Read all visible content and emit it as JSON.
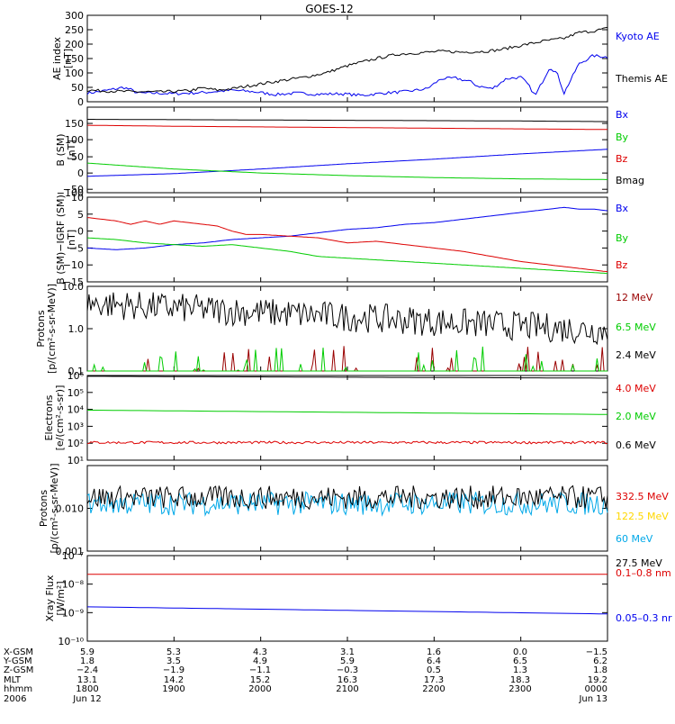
{
  "title": "GOES-12",
  "colors": {
    "black": "#000000",
    "blue": "#0000ee",
    "red": "#dd0000",
    "green": "#00cc00",
    "darkred": "#990000",
    "yellow": "#ffd700",
    "cyan": "#00a8e8"
  },
  "chart_data": [
    {
      "type": "line",
      "ylabel_lines": [
        "AE index",
        "[nT]"
      ],
      "ylim": [
        0,
        300
      ],
      "y_ticks": [
        "0",
        "50",
        "100",
        "150",
        "200",
        "250",
        "300"
      ],
      "x_range": [
        0,
        360
      ],
      "series": [
        {
          "name": "Kyoto AE",
          "color": "blue",
          "x": [
            0,
            8,
            20,
            25,
            30,
            35,
            45,
            60,
            80,
            100,
            115,
            130,
            145,
            160,
            175,
            190,
            205,
            220,
            235,
            245,
            255,
            265,
            270,
            280,
            290,
            300,
            305,
            310,
            315,
            320,
            325,
            330,
            340,
            350,
            360
          ],
          "y": [
            30,
            35,
            45,
            50,
            42,
            30,
            30,
            28,
            32,
            40,
            35,
            25,
            30,
            26,
            28,
            22,
            30,
            35,
            45,
            80,
            82,
            70,
            55,
            45,
            80,
            85,
            60,
            20,
            70,
            120,
            100,
            30,
            130,
            160,
            155
          ]
        },
        {
          "name": "Themis AE",
          "color": "black",
          "x": [
            0,
            10,
            30,
            50,
            70,
            80,
            90,
            100,
            115,
            130,
            150,
            165,
            180,
            200,
            215,
            230,
            245,
            260,
            275,
            285,
            300,
            315,
            330,
            340,
            350,
            360
          ],
          "y": [
            40,
            38,
            35,
            34,
            38,
            48,
            40,
            45,
            58,
            70,
            85,
            100,
            125,
            150,
            165,
            170,
            175,
            172,
            175,
            180,
            195,
            210,
            220,
            240,
            245,
            255
          ]
        }
      ]
    },
    {
      "type": "line",
      "ylabel_lines": [
        "B (SM)",
        "[nT]"
      ],
      "ylim": [
        -110,
        150
      ],
      "y_ticks": [
        "−100",
        "−50",
        "0",
        "50",
        "100",
        "150"
      ],
      "x_range": [
        0,
        360
      ],
      "series": [
        {
          "name": "Bx",
          "color": "blue",
          "x": [
            0,
            60,
            120,
            180,
            240,
            300,
            360
          ],
          "y": [
            -60,
            -52,
            -38,
            -22,
            -8,
            8,
            22
          ]
        },
        {
          "name": "By",
          "color": "green",
          "x": [
            0,
            60,
            120,
            180,
            240,
            300,
            360
          ],
          "y": [
            -20,
            -38,
            -50,
            -58,
            -64,
            -68,
            -70
          ]
        },
        {
          "name": "Bz",
          "color": "red",
          "x": [
            0,
            60,
            120,
            180,
            240,
            300,
            360
          ],
          "y": [
            95,
            92,
            90,
            88,
            86,
            84,
            82
          ]
        },
        {
          "name": "Bmag",
          "color": "black",
          "x": [
            0,
            60,
            120,
            180,
            240,
            300,
            360
          ],
          "y": [
            113,
            112,
            111,
            110,
            109,
            108,
            106
          ]
        }
      ]
    },
    {
      "type": "line",
      "ylabel_lines": [
        "B (SM)−IGRF (SM)",
        "[nT]"
      ],
      "ylim": [
        -15,
        10
      ],
      "y_ticks": [
        "−15",
        "−10",
        "−5",
        "0",
        "5",
        "10"
      ],
      "x_range": [
        0,
        360
      ],
      "series": [
        {
          "name": "Bx",
          "color": "blue",
          "x": [
            0,
            20,
            40,
            60,
            80,
            100,
            120,
            140,
            160,
            180,
            200,
            220,
            240,
            260,
            280,
            300,
            320,
            330,
            340,
            350,
            360
          ],
          "y": [
            -5,
            -5.5,
            -5,
            -4,
            -3.5,
            -2.5,
            -2,
            -1.5,
            -0.5,
            0.5,
            1,
            2,
            2.5,
            3.5,
            4.5,
            5.5,
            6.5,
            7,
            6.5,
            6.5,
            6
          ]
        },
        {
          "name": "By",
          "color": "green",
          "x": [
            0,
            20,
            40,
            60,
            80,
            100,
            120,
            140,
            160,
            180,
            200,
            220,
            240,
            260,
            280,
            300,
            320,
            340,
            360
          ],
          "y": [
            -2,
            -2.5,
            -3.5,
            -4,
            -4.5,
            -4,
            -5,
            -6,
            -7.5,
            -8,
            -8.5,
            -9,
            -9.5,
            -10,
            -10.5,
            -11,
            -11.5,
            -12,
            -12.5
          ]
        },
        {
          "name": "Bz",
          "color": "red",
          "x": [
            0,
            10,
            20,
            30,
            40,
            50,
            60,
            70,
            80,
            90,
            100,
            110,
            120,
            140,
            160,
            180,
            200,
            220,
            240,
            260,
            280,
            300,
            320,
            340,
            360
          ],
          "y": [
            4,
            3.5,
            3,
            2,
            3,
            2,
            3,
            2.5,
            2,
            1.5,
            0,
            -1,
            -1,
            -1.5,
            -2,
            -3.5,
            -3,
            -4,
            -5,
            -6,
            -7.5,
            -9,
            -10,
            -11,
            -12
          ]
        }
      ]
    },
    {
      "type": "line",
      "ylabel_lines": [
        "Protons",
        "[p/(cm²-s-sr-MeV)]"
      ],
      "yscale": "log",
      "ylim": [
        0.1,
        10
      ],
      "y_ticks": [
        "0.1",
        "1.0",
        "10.0"
      ],
      "x_range": [
        0,
        360
      ],
      "series": [
        {
          "name": "12 MeV",
          "color": "darkred",
          "level": 0.1,
          "noisy": true
        },
        {
          "name": "6.5 MeV",
          "color": "green",
          "level": 0.1,
          "noisy": true
        },
        {
          "name": "2.4 MeV",
          "color": "black",
          "level_start": 4.0,
          "level_end": 0.9,
          "noisy": true
        }
      ]
    },
    {
      "type": "line",
      "ylabel_lines": [
        "Electrons",
        "[e/(cm²-s-sr)]"
      ],
      "yscale": "log",
      "ylim": [
        10,
        1000000
      ],
      "y_ticks": [
        "10¹",
        "10²",
        "10³",
        "10⁴",
        "10⁵",
        "10⁶"
      ],
      "x_range": [
        0,
        360
      ],
      "series": [
        {
          "name": "4.0 MeV",
          "color": "red",
          "level": 110,
          "noisy": true
        },
        {
          "name": "2.0 MeV",
          "color": "green",
          "level_start": 9000,
          "level_end": 5000
        },
        {
          "name": "0.6 MeV",
          "color": "black",
          "level_start": 900000,
          "level_end": 700000
        }
      ]
    },
    {
      "type": "line",
      "ylabel_lines": [
        "Protons",
        "[p/(cm²-s-sr-MeV)]"
      ],
      "yscale": "log",
      "ylim": [
        0.001,
        0.1
      ],
      "y_ticks": [
        "0.001",
        "0.010"
      ],
      "x_range": [
        0,
        360
      ],
      "series": [
        {
          "name": "332.5 MeV",
          "color": "red"
        },
        {
          "name": "122.5 MeV",
          "color": "yellow"
        },
        {
          "name": "60 MeV",
          "color": "cyan",
          "level": 0.013,
          "noisy": true
        },
        {
          "name": "27.5 MeV",
          "color": "black",
          "level": 0.018,
          "noisy": true
        }
      ]
    },
    {
      "type": "line",
      "ylabel_lines": [
        "Xray Flux",
        "[W/m²]"
      ],
      "yscale": "log",
      "ylim": [
        1e-10,
        1e-07
      ],
      "y_ticks": [
        "10⁻¹⁰",
        "10⁻⁹",
        "10⁻⁸",
        "10⁻⁷"
      ],
      "x_range": [
        0,
        360
      ],
      "series": [
        {
          "name": "0.1–0.8 nm",
          "color": "red",
          "level": 2.2e-08
        },
        {
          "name": "0.05–0.3 nr",
          "color": "blue",
          "level_start": 1.6e-09,
          "level_end": 9e-10
        }
      ]
    }
  ],
  "x_axis": {
    "row_labels": [
      "X-GSM",
      "Y-GSM",
      "Z-GSM",
      "MLT",
      "hhmm",
      "2006"
    ],
    "columns": [
      [
        "5.9",
        "1.8",
        "−2.4",
        "13.1",
        "1800",
        "Jun 12"
      ],
      [
        "5.3",
        "3.5",
        "−1.9",
        "14.2",
        "1900",
        ""
      ],
      [
        "4.3",
        "4.9",
        "−1.1",
        "15.2",
        "2000",
        ""
      ],
      [
        "3.1",
        "5.9",
        "−0.3",
        "16.3",
        "2100",
        ""
      ],
      [
        "1.6",
        "6.4",
        "0.5",
        "17.3",
        "2200",
        ""
      ],
      [
        "0.0",
        "6.5",
        "1.3",
        "18.3",
        "2300",
        ""
      ],
      [
        "−1.5",
        "6.2",
        "1.8",
        "19.2",
        "0000",
        "Jun 13"
      ]
    ]
  }
}
